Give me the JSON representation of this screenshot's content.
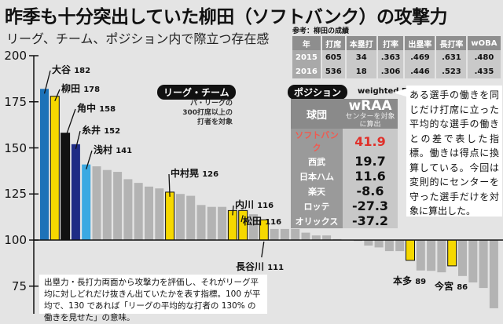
{
  "title": "昨季も十分突出していた柳田（ソフトバンク）の攻撃力",
  "subtitle": "リーグ、チーム、ポジション内で際立つ存在感",
  "colors": {
    "background": "#e4e4e4",
    "gray_bar": "#b3b3b3",
    "yellow": "#f6d800",
    "blue": "#1d72b8",
    "black": "#111111",
    "navy": "#1f2c85",
    "light_blue": "#3aa9e2",
    "highlight_red": "#e0302a"
  },
  "league_badge": "リーグ・チーム",
  "league_note": [
    "パ・リーグの",
    "300打席以上の",
    "打者を対象"
  ],
  "stats": {
    "caption": "参考：柳田の成績",
    "headers": [
      "年",
      "打席",
      "本塁打",
      "打率",
      "出塁率",
      "長打率",
      "wOBA"
    ],
    "rows": [
      [
        "2015",
        "605",
        "34",
        ".363",
        ".469",
        ".631",
        ".480"
      ],
      [
        "2016",
        "536",
        "18",
        ".306",
        ".446",
        ".523",
        ".435"
      ]
    ]
  },
  "position": {
    "badge": "ポジション",
    "metric_full": "weighted Runs Above Aveage",
    "col_team": "球団",
    "col_metric": "wRAA",
    "col_metric_note": "センターを対象に算出",
    "rows": [
      {
        "team": "ソフトバンク",
        "value": "41.9",
        "highlight": true
      },
      {
        "team": "西武",
        "value": "19.7"
      },
      {
        "team": "日本ハム",
        "value": "11.6"
      },
      {
        "team": "楽天",
        "value": "-8.6"
      },
      {
        "team": "ロッテ",
        "value": "-27.3"
      },
      {
        "team": "オリックス",
        "value": "-37.2"
      }
    ],
    "explanation": "ある選手の働きを同じだけ打席に立った平均的な選手の働きとの差で表した指標。働きは得点に換算している。今回は変則的にセンターを守った選手だけを対象に算出した。"
  },
  "note": "出塁力・長打力両面から攻撃力を評価し、それがリーグ平均に対しどれだけ抜きん出ていたかを表す指標。100 が平均で、130 であれば「リーグの平均的な打者の 130% の働きを見せた」の意味。",
  "chart_data": {
    "type": "bar",
    "baseline": 100,
    "ylim": [
      60,
      200
    ],
    "yticks": [
      "200",
      "175",
      "150",
      "125",
      "100",
      "75"
    ],
    "grid": false,
    "bars": [
      {
        "name": "大谷",
        "value": 182,
        "color": "blue"
      },
      {
        "name": "柳田",
        "value": 178,
        "color": "yellow"
      },
      {
        "name": "角中",
        "value": 158,
        "color": "black"
      },
      {
        "name": "糸井",
        "value": 152,
        "color": "navy"
      },
      {
        "name": "浅村",
        "value": 141,
        "color": "light_blue"
      },
      {
        "value": 140,
        "color": "gray"
      },
      {
        "value": 138,
        "color": "gray"
      },
      {
        "value": 137,
        "color": "gray"
      },
      {
        "value": 133,
        "color": "gray"
      },
      {
        "value": 131,
        "color": "gray"
      },
      {
        "value": 129,
        "color": "gray"
      },
      {
        "value": 128,
        "color": "gray"
      },
      {
        "name": "中村晃",
        "value": 126,
        "color": "yellow"
      },
      {
        "value": 125,
        "color": "gray"
      },
      {
        "value": 124,
        "color": "gray"
      },
      {
        "value": 119,
        "color": "gray"
      },
      {
        "value": 118,
        "color": "gray"
      },
      {
        "value": 118,
        "color": "gray"
      },
      {
        "name": "内川",
        "value": 116,
        "color": "yellow"
      },
      {
        "name": "松田",
        "value": 116,
        "color": "yellow"
      },
      {
        "value": 114,
        "color": "gray"
      },
      {
        "name": "長谷川",
        "value": 111,
        "color": "yellow"
      },
      {
        "value": 106,
        "color": "gray"
      },
      {
        "value": 106,
        "color": "gray"
      },
      {
        "value": 106,
        "color": "gray"
      },
      {
        "value": 104,
        "color": "gray"
      },
      {
        "value": 102.5,
        "color": "gray"
      },
      {
        "value": 102.5,
        "color": "gray"
      },
      {
        "value": 100.5,
        "color": "gray"
      },
      {
        "value": 100,
        "color": "gray"
      },
      {
        "value": 99.5,
        "color": "gray"
      },
      {
        "value": 97,
        "color": "gray"
      },
      {
        "value": 96,
        "color": "gray"
      },
      {
        "value": 94,
        "color": "gray"
      },
      {
        "value": 94,
        "color": "gray"
      },
      {
        "name": "本多",
        "value": 89,
        "color": "yellow"
      },
      {
        "value": 83.5,
        "color": "gray"
      },
      {
        "value": 83.3,
        "color": "gray"
      },
      {
        "value": 82.5,
        "color": "gray"
      },
      {
        "name": "今宮",
        "value": 86,
        "color": "yellow"
      },
      {
        "value": 80.5,
        "color": "gray"
      },
      {
        "value": 77,
        "color": "gray"
      },
      {
        "value": 74,
        "color": "gray"
      },
      {
        "value": 63,
        "color": "gray"
      }
    ]
  }
}
